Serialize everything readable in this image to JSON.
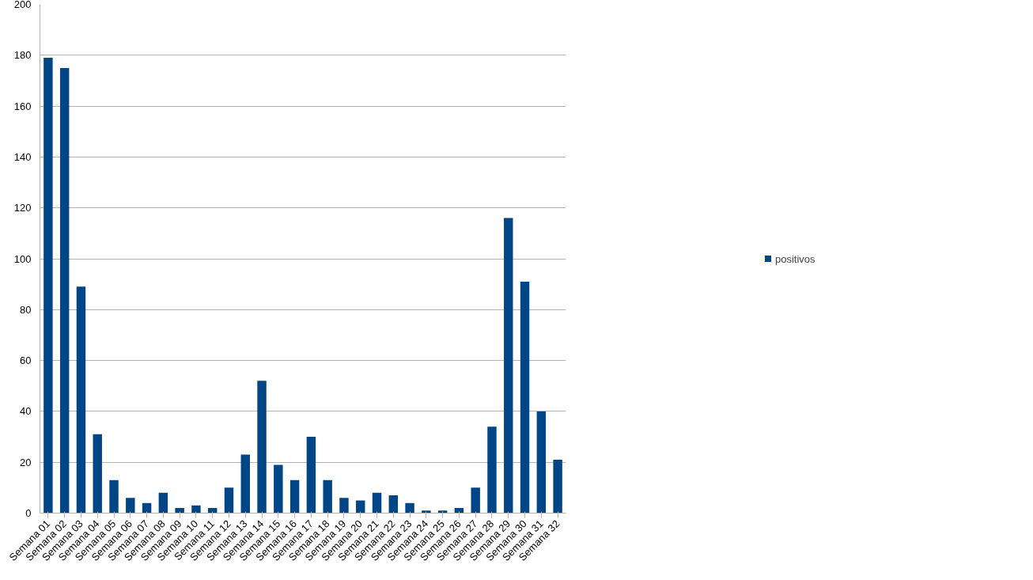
{
  "chart_data": {
    "type": "bar",
    "categories": [
      "Semana 01",
      "Semana 02",
      "Semana 03",
      "Semana 04",
      "Semana 05",
      "Semana 06",
      "Semana 07",
      "Semana 08",
      "Semana 09",
      "Semana 10",
      "Semana 11",
      "Semana 12",
      "Semana 13",
      "Semana 14",
      "Semana 15",
      "Semana 16",
      "Semana 17",
      "Semana 18",
      "Semana 19",
      "Semana 20",
      "Semana 21",
      "Semana 22",
      "Semana 23",
      "Semana 24",
      "Semana 25",
      "Semana 26",
      "Semana 27",
      "Semana 28",
      "Semana 29",
      "Semana 30",
      "Semana 31",
      "Semana 32"
    ],
    "series": [
      {
        "name": "positivos",
        "color": "#004586",
        "values": [
          179,
          175,
          89,
          31,
          13,
          6,
          4,
          8,
          2,
          3,
          2,
          10,
          23,
          52,
          19,
          13,
          30,
          13,
          6,
          5,
          8,
          7,
          4,
          1,
          1,
          2,
          10,
          34,
          116,
          91,
          40,
          21
        ]
      }
    ],
    "ylim": [
      0,
      200
    ],
    "yticks": [
      0,
      20,
      40,
      60,
      80,
      100,
      120,
      140,
      160,
      180,
      200
    ],
    "grid": "y",
    "legend": "right"
  }
}
